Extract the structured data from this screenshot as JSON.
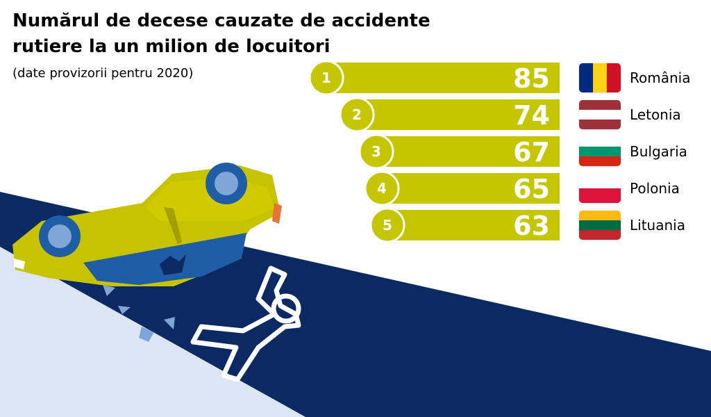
{
  "title": "Numărul de decese cauzate de accidente rutiere la un milion de locuitori",
  "subtitle": "(date provizorii pentru 2020)",
  "colors": {
    "bar": "#c5c500",
    "bar_badge": "#c5c500",
    "navy": "#0b2a63",
    "light_blue": "#dbe5f3",
    "car": "#c8c300",
    "wheel": "#1f5ea6"
  },
  "chart_data": {
    "type": "bar",
    "categories": [
      "România",
      "Letonia",
      "Bulgaria",
      "Polonia",
      "Lituania"
    ],
    "values": [
      85,
      74,
      67,
      65,
      63
    ],
    "ranks": [
      "1",
      "2",
      "3",
      "4",
      "5"
    ],
    "title": "Numărul de decese cauzate de accidente rutiere la un milion de locuitori",
    "subtitle": "(date provizorii pentru 2020)",
    "orientation": "horizontal"
  },
  "countries": [
    {
      "name": "România",
      "flag": [
        "#002b7f",
        "#fcd116",
        "#ce1126"
      ],
      "flag_orientation": "vertical",
      "flag_icon": "romania-flag-icon"
    },
    {
      "name": "Letonia",
      "flag": [
        "#9e3039",
        "#ffffff",
        "#9e3039"
      ],
      "flag_orientation": "horizontal",
      "flag_icon": "latvia-flag-icon"
    },
    {
      "name": "Bulgaria",
      "flag": [
        "#ffffff",
        "#00966e",
        "#d62612"
      ],
      "flag_orientation": "horizontal",
      "flag_icon": "bulgaria-flag-icon"
    },
    {
      "name": "Polonia",
      "flag": [
        "#ffffff",
        "#dc143c"
      ],
      "flag_orientation": "horizontal",
      "flag_icon": "poland-flag-icon"
    },
    {
      "name": "Lituania",
      "flag": [
        "#fdb913",
        "#006a44",
        "#c1272d"
      ],
      "flag_orientation": "horizontal",
      "flag_icon": "lithuania-flag-icon"
    }
  ],
  "illustration": {
    "icons": [
      "overturned-car-icon",
      "body-outline-icon",
      "road-icon"
    ]
  }
}
